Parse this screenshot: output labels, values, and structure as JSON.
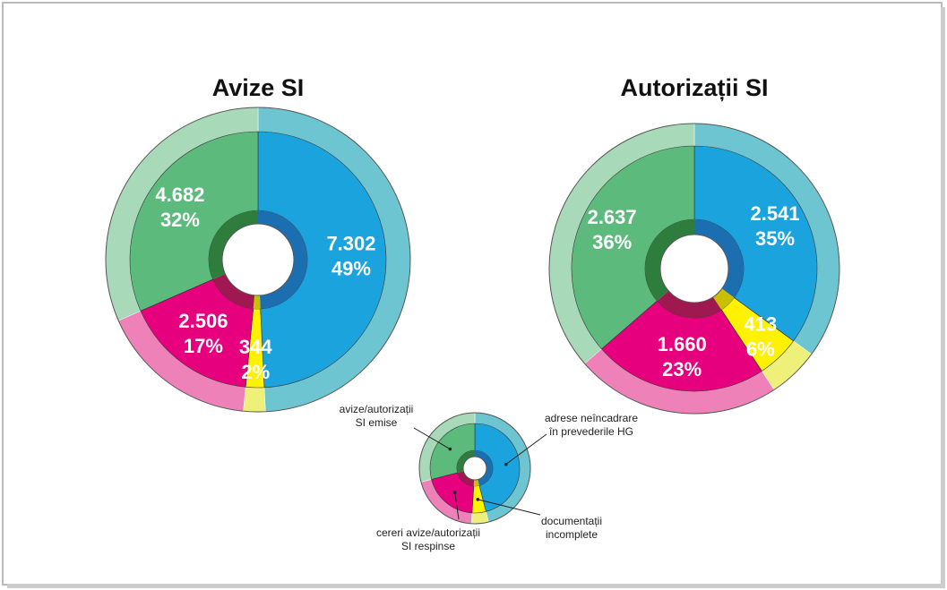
{
  "chart_data": [
    {
      "type": "donut",
      "title": "Avize SI",
      "values": [
        7302,
        344,
        2506,
        4682
      ],
      "value_labels": [
        "7.302",
        "344",
        "2.506",
        "4.682"
      ],
      "percentages": [
        49,
        2,
        17,
        32
      ],
      "percent_labels": [
        "49%",
        "2%",
        "17%",
        "32%"
      ]
    },
    {
      "type": "donut",
      "title": "Autorizații SI",
      "values": [
        2541,
        413,
        1660,
        2637
      ],
      "value_labels": [
        "2.541",
        "413",
        "1.660",
        "2.637"
      ],
      "percentages": [
        35,
        6,
        23,
        36
      ],
      "percent_labels": [
        "35%",
        "6%",
        "23%",
        "36%"
      ]
    }
  ],
  "legend": {
    "categories": [
      [
        "adrese neîncadrare",
        "în prevederile HG"
      ],
      [
        "documentații",
        "incomplete"
      ],
      [
        "cereri avize/autorizații",
        "SI respinse"
      ],
      [
        "avize/autorizații",
        "SI emise"
      ]
    ],
    "colors": [
      "#1ba3dd",
      "#fff200",
      "#e6007e",
      "#5dba7d"
    ],
    "outer_colors": [
      "#6cc5d0",
      "#eef07a",
      "#ee82b8",
      "#a8d9b8"
    ],
    "inner_colors": [
      "#1b6fb0",
      "#c8c000",
      "#a01850",
      "#2e7d3d"
    ]
  }
}
